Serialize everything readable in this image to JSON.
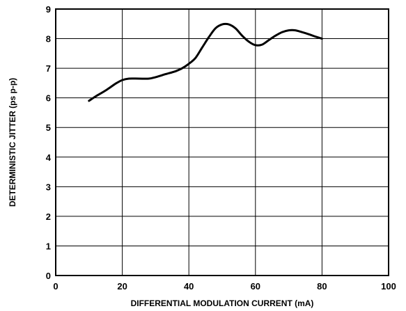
{
  "chart_data": {
    "type": "line",
    "title": "",
    "xlabel": "DIFFERENTIAL MODULATION CURRENT (mA)",
    "ylabel": "DETERMINISTIC JITTER (ps p-p)",
    "xlim": [
      0,
      100
    ],
    "ylim": [
      0,
      9
    ],
    "x_ticks": [
      0,
      20,
      40,
      60,
      80,
      100
    ],
    "y_ticks": [
      0,
      1,
      2,
      3,
      4,
      5,
      6,
      7,
      8,
      9
    ],
    "x_tick_labels": [
      "0",
      "20",
      "40",
      "60",
      "80",
      "100"
    ],
    "y_tick_labels": [
      "0",
      "1",
      "2",
      "3",
      "4",
      "5",
      "6",
      "7",
      "8",
      "9"
    ],
    "grid": true,
    "legend": "none",
    "series": [
      {
        "x": [
          10,
          12,
          15,
          18,
          20,
          22,
          25,
          28,
          30,
          33,
          36,
          38,
          40,
          42,
          44,
          46,
          48,
          50,
          52,
          54,
          56,
          58,
          60,
          62,
          64,
          66,
          68,
          70,
          72,
          74,
          76,
          78,
          80
        ],
        "y": [
          5.9,
          6.05,
          6.25,
          6.48,
          6.6,
          6.65,
          6.65,
          6.65,
          6.7,
          6.8,
          6.9,
          7.0,
          7.15,
          7.35,
          7.7,
          8.05,
          8.35,
          8.48,
          8.48,
          8.35,
          8.1,
          7.9,
          7.78,
          7.8,
          7.95,
          8.1,
          8.22,
          8.28,
          8.28,
          8.22,
          8.15,
          8.07,
          8.0
        ],
        "color": "#000000"
      }
    ]
  }
}
